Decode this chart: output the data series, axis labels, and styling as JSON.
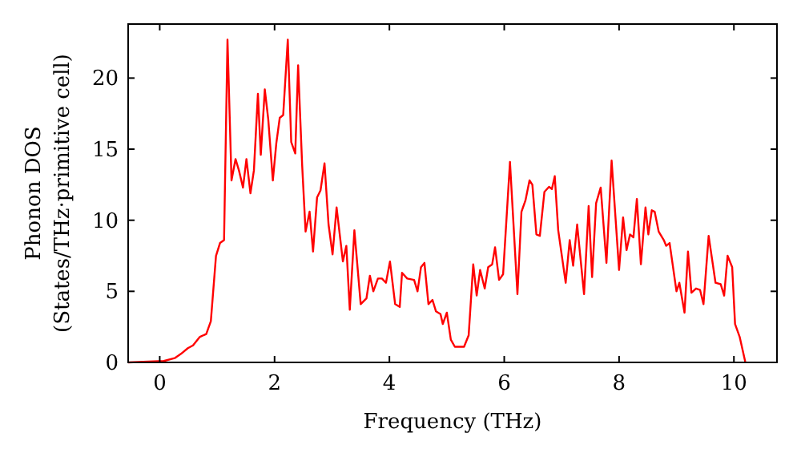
{
  "chart_data": {
    "type": "line",
    "xlabel": "Frequency (THz)",
    "ylabel": "Phonon DOS\n(States/THz·primitive cell)",
    "xlim": [
      -0.55,
      10.75
    ],
    "ylim": [
      0,
      23.8
    ],
    "xticks": [
      0,
      2,
      4,
      6,
      8,
      10
    ],
    "yticks": [
      0,
      5,
      10,
      15,
      20
    ],
    "grid": false,
    "marker": "none",
    "line_style": "solid",
    "series": [
      {
        "color": "#ff0000",
        "x": [
          -0.55,
          0.07,
          0.26,
          0.37,
          0.49,
          0.58,
          0.7,
          0.81,
          0.89,
          0.98,
          1.05,
          1.12,
          1.18,
          1.25,
          1.32,
          1.38,
          1.45,
          1.51,
          1.58,
          1.64,
          1.71,
          1.76,
          1.83,
          1.89,
          1.97,
          2.03,
          2.09,
          2.15,
          2.23,
          2.29,
          2.36,
          2.41,
          2.48,
          2.54,
          2.61,
          2.67,
          2.74,
          2.8,
          2.87,
          2.94,
          3.01,
          3.08,
          3.19,
          3.25,
          3.31,
          3.39,
          3.5,
          3.6,
          3.66,
          3.72,
          3.8,
          3.87,
          3.94,
          4.01,
          4.1,
          4.18,
          4.22,
          4.31,
          4.43,
          4.49,
          4.55,
          4.61,
          4.68,
          4.75,
          4.81,
          4.89,
          4.93,
          5.0,
          5.07,
          5.14,
          5.3,
          5.38,
          5.46,
          5.52,
          5.58,
          5.66,
          5.72,
          5.79,
          5.84,
          5.91,
          5.98,
          6.1,
          6.23,
          6.3,
          6.37,
          6.44,
          6.49,
          6.56,
          6.62,
          6.7,
          6.78,
          6.83,
          6.88,
          6.94,
          7.07,
          7.14,
          7.2,
          7.27,
          7.39,
          7.47,
          7.53,
          7.6,
          7.68,
          7.78,
          7.87,
          8.0,
          8.07,
          8.13,
          8.19,
          8.25,
          8.31,
          8.38,
          8.46,
          8.51,
          8.57,
          8.62,
          8.69,
          8.78,
          8.82,
          8.88,
          9.0,
          9.05,
          9.14,
          9.2,
          9.26,
          9.34,
          9.41,
          9.47,
          9.56,
          9.68,
          9.77,
          9.83,
          9.89,
          9.97,
          10.02,
          10.1,
          10.2
        ],
        "values": [
          0,
          0.1,
          0.3,
          0.6,
          1.0,
          1.2,
          1.8,
          2.0,
          2.9,
          7.5,
          8.4,
          8.6,
          22.7,
          12.8,
          14.3,
          13.5,
          12.3,
          14.3,
          11.9,
          13.5,
          18.9,
          14.6,
          19.2,
          17.1,
          12.8,
          15.4,
          17.2,
          17.4,
          22.7,
          15.5,
          14.7,
          20.9,
          13.9,
          9.2,
          10.6,
          7.8,
          11.6,
          12.1,
          14.0,
          9.7,
          7.6,
          10.9,
          7.1,
          8.2,
          3.7,
          9.3,
          4.1,
          4.5,
          6.1,
          5.0,
          5.9,
          5.9,
          5.6,
          7.1,
          4.1,
          3.9,
          6.3,
          5.9,
          5.8,
          5.0,
          6.7,
          7.0,
          4.1,
          4.4,
          3.6,
          3.4,
          2.7,
          3.5,
          1.6,
          1.1,
          1.1,
          1.9,
          6.9,
          4.7,
          6.5,
          5.2,
          6.7,
          6.9,
          8.1,
          5.8,
          6.2,
          14.1,
          4.8,
          10.6,
          11.4,
          12.8,
          12.5,
          9.0,
          8.9,
          12.0,
          12.35,
          12.2,
          13.1,
          9.3,
          5.6,
          8.6,
          6.8,
          9.7,
          4.8,
          11.0,
          6.0,
          11.2,
          12.3,
          7.0,
          14.2,
          6.5,
          10.2,
          7.9,
          9.0,
          8.8,
          11.5,
          6.9,
          10.9,
          9.0,
          10.7,
          10.6,
          9.2,
          8.6,
          8.2,
          8.4,
          5.0,
          5.6,
          3.5,
          7.8,
          4.9,
          5.2,
          5.1,
          4.1,
          8.9,
          5.6,
          5.5,
          4.7,
          7.5,
          6.7,
          2.7,
          1.8,
          0
        ]
      }
    ]
  }
}
